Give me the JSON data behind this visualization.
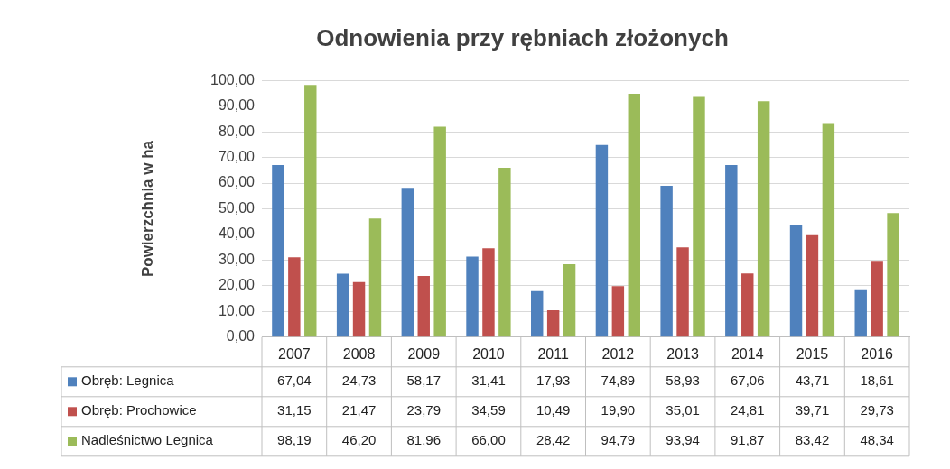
{
  "chart_data": {
    "type": "bar",
    "title": "Odnowienia przy rębniach złożonych",
    "ylabel": "Powierzchnia w ha",
    "categories": [
      "2007",
      "2008",
      "2009",
      "2010",
      "2011",
      "2012",
      "2013",
      "2014",
      "2015",
      "2016"
    ],
    "series": [
      {
        "name": "Obręb: Legnica",
        "color": "#4f81bd",
        "values": [
          67.04,
          24.73,
          58.17,
          31.41,
          17.93,
          74.89,
          58.93,
          67.06,
          43.71,
          18.61
        ],
        "value_labels": [
          "67,04",
          "24,73",
          "58,17",
          "31,41",
          "17,93",
          "74,89",
          "58,93",
          "67,06",
          "43,71",
          "18,61"
        ]
      },
      {
        "name": "Obręb: Prochowice",
        "color": "#c0504d",
        "values": [
          31.15,
          21.47,
          23.79,
          34.59,
          10.49,
          19.9,
          35.01,
          24.81,
          39.71,
          29.73
        ],
        "value_labels": [
          "31,15",
          "21,47",
          "23,79",
          "34,59",
          "10,49",
          "19,90",
          "35,01",
          "24,81",
          "39,71",
          "29,73"
        ]
      },
      {
        "name": "Nadleśnictwo Legnica",
        "color": "#9bbb59",
        "values": [
          98.19,
          46.2,
          81.96,
          66.0,
          28.42,
          94.79,
          93.94,
          91.87,
          83.42,
          48.34
        ],
        "value_labels": [
          "98,19",
          "46,20",
          "81,96",
          "66,00",
          "28,42",
          "94,79",
          "93,94",
          "91,87",
          "83,42",
          "48,34"
        ]
      }
    ],
    "ylim": [
      0,
      100
    ],
    "yticks": [
      {
        "value": 0,
        "label": "0,00"
      },
      {
        "value": 10,
        "label": "10,00"
      },
      {
        "value": 20,
        "label": "20,00"
      },
      {
        "value": 30,
        "label": "30,00"
      },
      {
        "value": 40,
        "label": "40,00"
      },
      {
        "value": 50,
        "label": "50,00"
      },
      {
        "value": 60,
        "label": "60,00"
      },
      {
        "value": 70,
        "label": "70,00"
      },
      {
        "value": 80,
        "label": "80,00"
      },
      {
        "value": 90,
        "label": "90,00"
      },
      {
        "value": 100,
        "label": "100,00"
      }
    ],
    "grid": "y",
    "legend": "bottom"
  }
}
